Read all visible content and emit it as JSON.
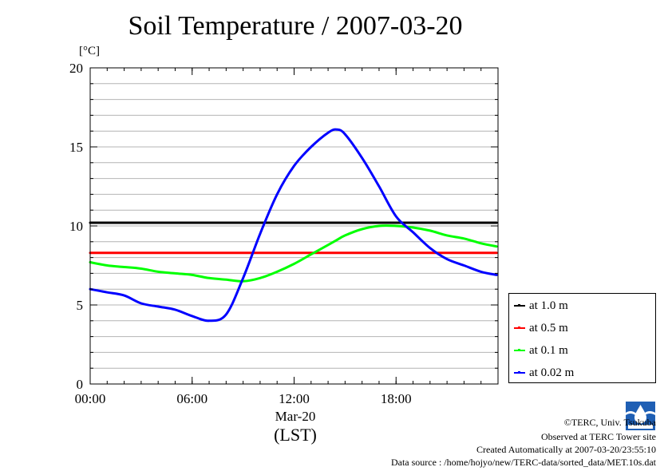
{
  "title": "Soil Temperature / 2007-03-20",
  "unit_label": "[°C]",
  "xaxis": {
    "date_label": "Mar-20",
    "tz_label": "(LST)"
  },
  "footer": {
    "copyright": "©TERC, Univ. Tsukuba",
    "observed": "Observed at TERC Tower site",
    "created": "Created Automatically at 2007-03-20/23:55:10",
    "source": "Data source : /home/hojyo/new/TERC-data/sorted_data/MET.10s.dat"
  },
  "logo": {
    "name": "terc-logo",
    "color": "#1f5fb4"
  },
  "chart_data": {
    "type": "line",
    "title": "Soil Temperature / 2007-03-20",
    "ylabel": "[°C]",
    "xlabel": "(LST)",
    "xlim": [
      "00:00",
      "24:00"
    ],
    "ylim": [
      0,
      20
    ],
    "x_ticks": [
      "00:00",
      "06:00",
      "12:00",
      "18:00"
    ],
    "y_ticks": [
      0,
      5,
      10,
      15,
      20
    ],
    "y_minor_step": 1,
    "grid": true,
    "legend_position": "right",
    "x": [
      "00:00",
      "01:00",
      "02:00",
      "03:00",
      "04:00",
      "05:00",
      "06:00",
      "07:00",
      "08:00",
      "09:00",
      "10:00",
      "11:00",
      "12:00",
      "13:00",
      "14:00",
      "14:30",
      "15:00",
      "16:00",
      "17:00",
      "18:00",
      "19:00",
      "20:00",
      "21:00",
      "22:00",
      "23:00",
      "23:55"
    ],
    "series": [
      {
        "name": "at 1.0 m",
        "color": "#000000",
        "values": [
          10.2,
          10.2,
          10.2,
          10.2,
          10.2,
          10.2,
          10.2,
          10.2,
          10.2,
          10.2,
          10.2,
          10.2,
          10.2,
          10.2,
          10.2,
          10.2,
          10.2,
          10.2,
          10.2,
          10.2,
          10.2,
          10.2,
          10.2,
          10.2,
          10.2,
          10.2
        ]
      },
      {
        "name": "at 0.5 m",
        "color": "#ff0000",
        "values": [
          8.3,
          8.3,
          8.3,
          8.3,
          8.3,
          8.3,
          8.3,
          8.3,
          8.3,
          8.3,
          8.3,
          8.3,
          8.3,
          8.3,
          8.3,
          8.3,
          8.3,
          8.3,
          8.3,
          8.3,
          8.3,
          8.3,
          8.3,
          8.3,
          8.3,
          8.3
        ]
      },
      {
        "name": "at 0.1 m",
        "color": "#00ff00",
        "values": [
          7.7,
          7.5,
          7.4,
          7.3,
          7.1,
          7.0,
          6.9,
          6.7,
          6.6,
          6.5,
          6.7,
          7.1,
          7.6,
          8.2,
          8.8,
          9.1,
          9.4,
          9.8,
          10.0,
          10.0,
          9.9,
          9.7,
          9.4,
          9.2,
          8.9,
          8.7
        ]
      },
      {
        "name": "at 0.02 m",
        "color": "#0000ff",
        "values": [
          6.0,
          5.8,
          5.6,
          5.1,
          4.9,
          4.7,
          4.3,
          4.0,
          4.4,
          6.7,
          9.5,
          12.0,
          13.8,
          15.0,
          15.9,
          16.1,
          15.8,
          14.3,
          12.5,
          10.6,
          9.6,
          8.6,
          7.9,
          7.5,
          7.1,
          6.9
        ]
      }
    ]
  }
}
